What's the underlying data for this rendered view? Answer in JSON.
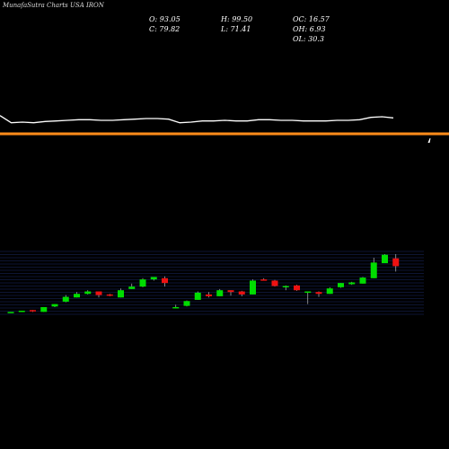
{
  "header": {
    "brand": "MunafaSutra Charts USA IRON"
  },
  "stats": {
    "open": "O: 93.05",
    "close": "C: 79.82",
    "high": "H: 99.50",
    "low": "L: 71.41",
    "oc": "OC: 16.57",
    "oh": "OH: 6.93",
    "ol": "OL: 30.3"
  },
  "colors": {
    "background": "#000000",
    "up": "#00dd00",
    "down": "#ee1111",
    "ref_line": "#ff8c1a",
    "upper_line": "#ffffff",
    "grid": "#1a2a66"
  },
  "chart_data": [
    {
      "type": "line",
      "name": "upper-indicator",
      "values": [
        72,
        60,
        61,
        60,
        62,
        63,
        64,
        65,
        65,
        64,
        64,
        65,
        66,
        67,
        67,
        66,
        60,
        61,
        63,
        63,
        64,
        63,
        63,
        65,
        65,
        64,
        64,
        63,
        63,
        63,
        64,
        64,
        65,
        69,
        70,
        68
      ],
      "reference_line": true,
      "ylim": [
        40,
        100
      ]
    },
    {
      "type": "candlestick",
      "ylim": [
        0,
        100
      ],
      "candles": [
        {
          "o": 3,
          "h": 4,
          "l": 2,
          "c": 4
        },
        {
          "o": 5,
          "h": 6,
          "l": 4,
          "c": 6
        },
        {
          "o": 7,
          "h": 7,
          "l": 4,
          "c": 5
        },
        {
          "o": 4,
          "h": 12,
          "l": 4,
          "c": 12
        },
        {
          "o": 13,
          "h": 17,
          "l": 12,
          "c": 17
        },
        {
          "o": 21,
          "h": 32,
          "l": 20,
          "c": 29
        },
        {
          "o": 28,
          "h": 37,
          "l": 28,
          "c": 34
        },
        {
          "o": 34,
          "h": 40,
          "l": 33,
          "c": 38
        },
        {
          "o": 38,
          "h": 38,
          "l": 28,
          "c": 32
        },
        {
          "o": 33,
          "h": 34,
          "l": 30,
          "c": 31
        },
        {
          "o": 28,
          "h": 43,
          "l": 28,
          "c": 40
        },
        {
          "o": 42,
          "h": 51,
          "l": 42,
          "c": 46
        },
        {
          "o": 46,
          "h": 60,
          "l": 45,
          "c": 58
        },
        {
          "o": 58,
          "h": 62,
          "l": 56,
          "c": 62
        },
        {
          "o": 60,
          "h": 63,
          "l": 46,
          "c": 52
        },
        {
          "o": 10,
          "h": 16,
          "l": 10,
          "c": 12
        },
        {
          "o": 14,
          "h": 23,
          "l": 13,
          "c": 22
        },
        {
          "o": 24,
          "h": 38,
          "l": 24,
          "c": 36
        },
        {
          "o": 33,
          "h": 37,
          "l": 28,
          "c": 30
        },
        {
          "o": 30,
          "h": 42,
          "l": 30,
          "c": 40
        },
        {
          "o": 40,
          "h": 40,
          "l": 31,
          "c": 37
        },
        {
          "o": 38,
          "h": 39,
          "l": 30,
          "c": 33
        },
        {
          "o": 33,
          "h": 58,
          "l": 33,
          "c": 56
        },
        {
          "o": 58,
          "h": 60,
          "l": 56,
          "c": 56
        },
        {
          "o": 56,
          "h": 57,
          "l": 46,
          "c": 47
        },
        {
          "o": 46,
          "h": 48,
          "l": 40,
          "c": 47
        },
        {
          "o": 48,
          "h": 49,
          "l": 39,
          "c": 40
        },
        {
          "o": 38,
          "h": 38,
          "l": 17,
          "c": 38
        },
        {
          "o": 37,
          "h": 38,
          "l": 29,
          "c": 34
        },
        {
          "o": 34,
          "h": 45,
          "l": 34,
          "c": 43
        },
        {
          "o": 45,
          "h": 52,
          "l": 44,
          "c": 52
        },
        {
          "o": 50,
          "h": 54,
          "l": 49,
          "c": 53
        },
        {
          "o": 51,
          "h": 62,
          "l": 51,
          "c": 61
        },
        {
          "o": 60,
          "h": 94,
          "l": 60,
          "c": 86
        },
        {
          "o": 85,
          "h": 100,
          "l": 85,
          "c": 99
        },
        {
          "o": 93,
          "h": 100,
          "l": 71,
          "c": 80
        }
      ]
    }
  ]
}
